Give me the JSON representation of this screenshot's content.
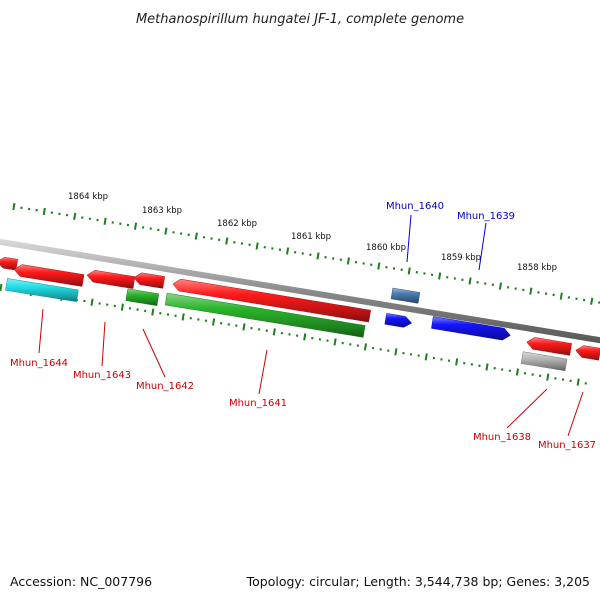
{
  "title": "Methanospirillum hungatei JF-1, complete genome",
  "footer": {
    "accession": "Accession: NC_007796",
    "summary": "Topology: circular; Length: 3,544,738 bp; Genes: 3,205"
  },
  "colors": {
    "backbone": "#8a8a8a",
    "tick": "#1c7f1c",
    "label_forward": "#0000cc",
    "label_reverse": "#cc0000"
  },
  "kbp_labels": [
    "1864 kbp",
    "1863 kbp",
    "1862 kbp",
    "1861 kbp",
    "1860 kbp",
    "1859 kbp",
    "1858 kbp"
  ],
  "genes": [
    {
      "id": "g0",
      "label": "",
      "strand": "reverse",
      "color": "#ff1a1a"
    },
    {
      "id": "g1",
      "label": "Mhun_1644",
      "strand": "reverse",
      "color": "#ff1a1a"
    },
    {
      "id": "g1b",
      "label": "",
      "strand": "reverse",
      "color": "#22e0e8"
    },
    {
      "id": "g2",
      "label": "Mhun_1643",
      "strand": "reverse",
      "color": "#ff1a1a"
    },
    {
      "id": "g3",
      "label": "Mhun_1642",
      "strand": "reverse",
      "color": "#ff1a1a"
    },
    {
      "id": "g3b",
      "label": "",
      "strand": "reverse",
      "color": "#2ab52a"
    },
    {
      "id": "g4",
      "label": "Mhun_1641",
      "strand": "reverse",
      "color": "#ff1a1a"
    },
    {
      "id": "g4b",
      "label": "",
      "strand": "reverse",
      "color": "#2ab52a"
    },
    {
      "id": "g5",
      "label": "Mhun_1640",
      "strand": "forward",
      "color": "#1414ff"
    },
    {
      "id": "g5b",
      "label": "",
      "strand": "forward",
      "color": "#4a7fb5"
    },
    {
      "id": "g6",
      "label": "Mhun_1639",
      "strand": "forward",
      "color": "#1414ff"
    },
    {
      "id": "g7",
      "label": "Mhun_1638",
      "strand": "reverse",
      "color": "#ff1a1a"
    },
    {
      "id": "g7b",
      "label": "",
      "strand": "reverse",
      "color": "#b8b8b8"
    },
    {
      "id": "g8",
      "label": "Mhun_1637",
      "strand": "reverse",
      "color": "#ff1a1a"
    }
  ]
}
